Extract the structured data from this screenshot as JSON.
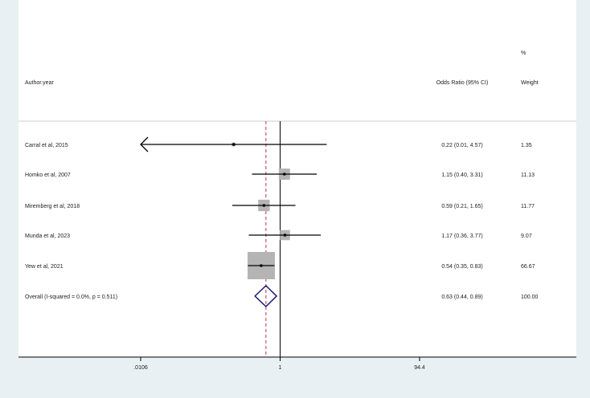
{
  "chart_data": {
    "type": "forest",
    "headers": {
      "study": "Author.year",
      "effect": "Odds Ratio (95% CI)",
      "weight_top": "%",
      "weight": "Weight"
    },
    "x_scale": "log",
    "xlim": [
      0.0106,
      94.4
    ],
    "x_ticks": [
      ".0106",
      "1",
      "94.4"
    ],
    "x_tick_values": [
      0.0106,
      1,
      94.4
    ],
    "null_value": 1,
    "studies": [
      {
        "label": "Carral et al, 2015",
        "or": 0.22,
        "lo": 0.01,
        "hi": 4.57,
        "text": "0.22 (0.01, 4.57)",
        "weight": "1.35"
      },
      {
        "label": "Homko et al, 2007",
        "or": 1.15,
        "lo": 0.4,
        "hi": 3.31,
        "text": "1.15 (0.40, 3.31)",
        "weight": "11.13"
      },
      {
        "label": "Miremberg et al, 2018",
        "or": 0.59,
        "lo": 0.21,
        "hi": 1.65,
        "text": "0.59 (0.21, 1.65)",
        "weight": "11.77"
      },
      {
        "label": "Munda et al, 2023",
        "or": 1.17,
        "lo": 0.36,
        "hi": 3.77,
        "text": "1.17 (0.36, 3.77)",
        "weight": "9.07"
      },
      {
        "label": "Yew et al, 2021",
        "or": 0.54,
        "lo": 0.35,
        "hi": 0.83,
        "text": "0.54 (0.35, 0.83)",
        "weight": "66.67"
      }
    ],
    "overall": {
      "label": "Overall  (I-squared = 0.0%, p = 0.511)",
      "or": 0.63,
      "lo": 0.44,
      "hi": 0.89,
      "text": "0.63 (0.44, 0.89)",
      "weight": "100.00"
    },
    "colors": {
      "background": "#e8f0f3",
      "box": "#b4b4b4",
      "diamond": "#1a1a6e",
      "overall_line": "#c0304a"
    }
  }
}
